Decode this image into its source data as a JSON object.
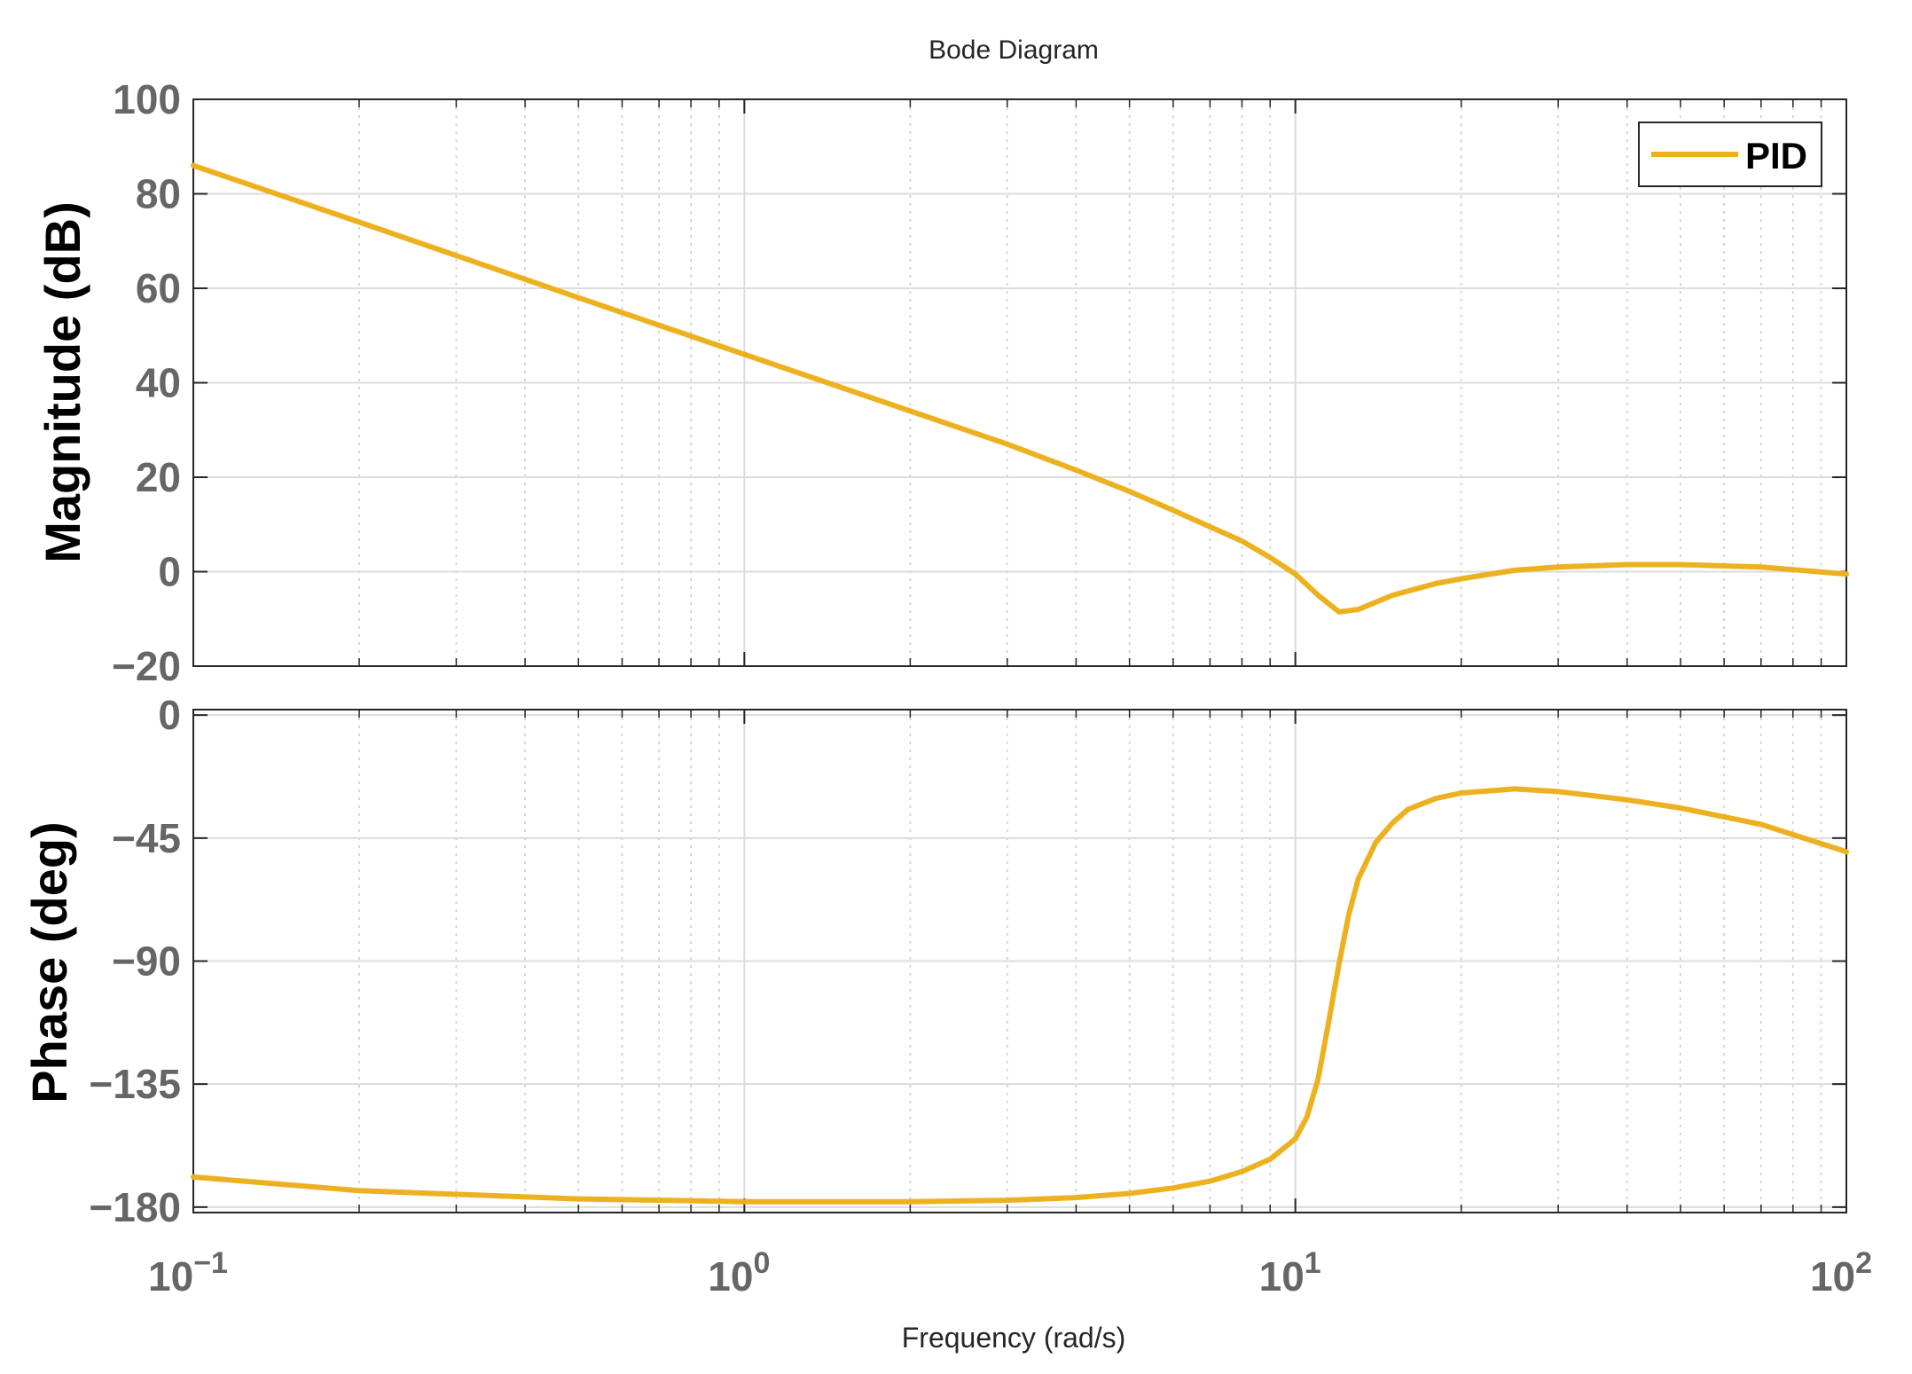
{
  "chart_data": [
    {
      "type": "line",
      "title": "Bode Diagram",
      "ylabel": "Magnitude (dB)",
      "xlabel": "Frequency  (rad/s)",
      "xscale": "log",
      "xlim": [
        0.1,
        100
      ],
      "ylim": [
        -20,
        100
      ],
      "yticks": [
        -20,
        0,
        20,
        40,
        60,
        80,
        100
      ],
      "ytick_labels": [
        "−20",
        "0",
        "20",
        "40",
        "60",
        "80",
        "100"
      ],
      "grid": true,
      "legend": {
        "position": "top-right",
        "entries": [
          "PID"
        ]
      },
      "series": [
        {
          "name": "PID",
          "color": "#EDB120",
          "x": [
            0.1,
            0.2,
            0.5,
            1,
            2,
            3,
            4,
            5,
            6,
            7,
            8,
            9,
            10,
            11,
            12,
            13,
            15,
            18,
            20,
            25,
            30,
            40,
            50,
            70,
            100
          ],
          "y": [
            86,
            74,
            58,
            46,
            34,
            27,
            21.5,
            17,
            13,
            9.5,
            6.5,
            3,
            -0.5,
            -5,
            -8.5,
            -8,
            -5,
            -2.5,
            -1.5,
            0.3,
            1,
            1.5,
            1.5,
            1,
            -0.5
          ]
        }
      ]
    },
    {
      "type": "line",
      "ylabel": "Phase (deg)",
      "xlabel": "Frequency  (rad/s)",
      "xscale": "log",
      "xlim": [
        0.1,
        100
      ],
      "ylim": [
        -182,
        2
      ],
      "yticks": [
        -180,
        -135,
        -90,
        -45,
        0
      ],
      "ytick_labels": [
        "−180",
        "−135",
        "−90",
        "−45",
        "0"
      ],
      "xticks": [
        0.1,
        1,
        10,
        100
      ],
      "xtick_labels": [
        {
          "base": "10",
          "exp": "−1"
        },
        {
          "base": "10",
          "exp": "0"
        },
        {
          "base": "10",
          "exp": "1"
        },
        {
          "base": "10",
          "exp": "2"
        }
      ],
      "grid": true,
      "series": [
        {
          "name": "PID",
          "color": "#EDB120",
          "x": [
            0.1,
            0.2,
            0.5,
            1,
            2,
            3,
            4,
            5,
            6,
            7,
            8,
            9,
            10,
            10.5,
            11,
            11.5,
            12,
            12.5,
            13,
            14,
            15,
            16,
            18,
            20,
            25,
            30,
            40,
            50,
            70,
            100
          ],
          "y": [
            -169,
            -174,
            -177,
            -178,
            -178,
            -177.5,
            -176.5,
            -175,
            -173,
            -170.5,
            -167,
            -162.5,
            -155,
            -147,
            -133,
            -112,
            -91,
            -73,
            -60,
            -46.5,
            -39.5,
            -34.5,
            -30.5,
            -28.5,
            -27,
            -28,
            -31,
            -34,
            -40,
            -50
          ]
        }
      ]
    }
  ]
}
